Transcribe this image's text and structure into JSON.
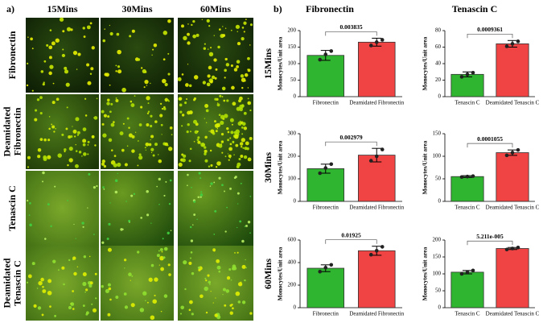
{
  "panel_a": {
    "label": "a)",
    "columns": [
      "15Mins",
      "30Mins",
      "60Mins"
    ],
    "rows": [
      [
        "Fibronectin"
      ],
      [
        "Deamidated",
        "Fibronectin"
      ],
      [
        "Tenascin C"
      ],
      [
        "Deamidated",
        "Tenascin C"
      ]
    ]
  },
  "panel_b": {
    "label": "b)",
    "columns": [
      "Fibronectin",
      "Tenascin C"
    ],
    "rows": [
      "15Mins",
      "30Mins",
      "60Mins"
    ]
  },
  "chart_data": [
    {
      "type": "bar",
      "ylabel": "Monocytes/Unit area",
      "categories": [
        "Fibronectin",
        "Deamidated Fibronectin"
      ],
      "colors": [
        "#2fb52f",
        "#f04343"
      ],
      "values": [
        125,
        165
      ],
      "errors": [
        15,
        12
      ],
      "points": [
        [
          112,
          128,
          138
        ],
        [
          155,
          165,
          172
        ]
      ],
      "annotation": "0.003835",
      "ylim": [
        0,
        200
      ],
      "yticks": [
        0,
        50,
        100,
        150,
        200
      ]
    },
    {
      "type": "bar",
      "ylabel": "Monocytes/Unit area",
      "categories": [
        "Tenascin C",
        "Deamidated Tenascin C"
      ],
      "colors": [
        "#2fb52f",
        "#f04343"
      ],
      "values": [
        27,
        64
      ],
      "errors": [
        3,
        4
      ],
      "points": [
        [
          24,
          27,
          29
        ],
        [
          61,
          64,
          67
        ]
      ],
      "annotation": "0.0009361",
      "ylim": [
        0,
        80
      ],
      "yticks": [
        0,
        20,
        40,
        60,
        80
      ]
    },
    {
      "type": "bar",
      "ylabel": "Monocytes/Unit area",
      "categories": [
        "Fibronectin",
        "Deamidated Fibronectin"
      ],
      "colors": [
        "#2fb52f",
        "#f04343"
      ],
      "values": [
        145,
        205
      ],
      "errors": [
        20,
        30
      ],
      "points": [
        [
          125,
          148,
          165
        ],
        [
          180,
          200,
          230
        ]
      ],
      "annotation": "0.002979",
      "ylim": [
        0,
        300
      ],
      "yticks": [
        0,
        100,
        200,
        300
      ]
    },
    {
      "type": "bar",
      "ylabel": "Monocytes/Unit area",
      "categories": [
        "Tenascin C",
        "Deamidated Tenascin C"
      ],
      "colors": [
        "#2fb52f",
        "#f04343"
      ],
      "values": [
        55,
        108
      ],
      "errors": [
        2,
        6
      ],
      "points": [
        [
          54,
          55,
          56
        ],
        [
          102,
          108,
          114
        ]
      ],
      "annotation": "0.0001055",
      "ylim": [
        0,
        150
      ],
      "yticks": [
        0,
        50,
        100,
        150
      ]
    },
    {
      "type": "bar",
      "ylabel": "Monocytes/Unit area",
      "categories": [
        "Fibronectin",
        "Deamidated Fibronectin"
      ],
      "colors": [
        "#2fb52f",
        "#f04343"
      ],
      "values": [
        350,
        505
      ],
      "errors": [
        30,
        40
      ],
      "points": [
        [
          320,
          355,
          380
        ],
        [
          470,
          505,
          540
        ]
      ],
      "annotation": "0.01925",
      "ylim": [
        0,
        600
      ],
      "yticks": [
        0,
        200,
        400,
        600
      ]
    },
    {
      "type": "bar",
      "ylabel": "Monocytes/Unit area",
      "categories": [
        "Tenascin C",
        "Deamidated Tenascin C"
      ],
      "colors": [
        "#2fb52f",
        "#f04343"
      ],
      "values": [
        105,
        175
      ],
      "errors": [
        5,
        3
      ],
      "points": [
        [
          100,
          105,
          110
        ],
        [
          172,
          175,
          178
        ]
      ],
      "annotation": "5.211e-005",
      "ylim": [
        0,
        200
      ],
      "yticks": [
        0,
        50,
        100,
        150,
        200
      ]
    }
  ]
}
